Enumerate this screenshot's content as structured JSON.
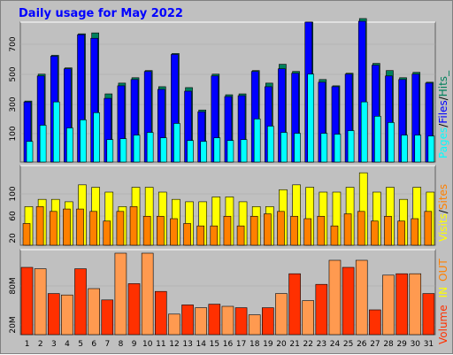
{
  "title": "Daily usage for May 2022",
  "colors": {
    "hits": "#00805c",
    "files": "#0000ff",
    "pages": "#00ffff",
    "visits": "#ffff00",
    "sites": "#ff8000",
    "kbytes": "#ff3000",
    "kbytes_light": "#ff9a50",
    "title": "#0000ff",
    "frame": "#c0c0c0",
    "weekend_day": "#00805c",
    "weekday": "#000000"
  },
  "legend": {
    "top": [
      "Pages",
      "/",
      "Files",
      "/",
      "Hits"
    ],
    "top_suffix": "_",
    "middle": [
      "Visits",
      "/",
      "Sites"
    ],
    "bottom": [
      "Volume",
      "IN",
      "OUT"
    ]
  },
  "chart_data": [
    {
      "type": "bar",
      "panel": "hits-files-pages",
      "categories": [
        "1",
        "2",
        "3",
        "4",
        "5",
        "6",
        "7",
        "8",
        "9",
        "10",
        "11",
        "12",
        "13",
        "14",
        "15",
        "16",
        "17",
        "18",
        "19",
        "20",
        "21",
        "22",
        "23",
        "24",
        "25",
        "26",
        "27",
        "28",
        "29",
        "30",
        "31"
      ],
      "y_ticks": [
        "100",
        "300",
        "500",
        "700"
      ],
      "ylim": [
        0,
        780
      ],
      "series": [
        {
          "name": "Hits",
          "values": [
            340,
            490,
            595,
            525,
            715,
            720,
            380,
            440,
            470,
            510,
            420,
            605,
            415,
            290,
            490,
            375,
            380,
            510,
            440,
            545,
            505,
            780,
            460,
            425,
            495,
            800,
            550,
            510,
            470,
            500,
            445
          ]
        },
        {
          "name": "Files",
          "values": [
            335,
            480,
            590,
            520,
            710,
            690,
            355,
            425,
            460,
            505,
            405,
            600,
            395,
            280,
            480,
            365,
            370,
            505,
            420,
            520,
            495,
            780,
            445,
            420,
            490,
            785,
            540,
            480,
            460,
            490,
            440
          ]
        },
        {
          "name": "Pages",
          "values": [
            115,
            205,
            335,
            190,
            235,
            275,
            125,
            130,
            150,
            165,
            135,
            215,
            120,
            115,
            135,
            120,
            125,
            240,
            200,
            165,
            160,
            490,
            160,
            155,
            175,
            335,
            255,
            220,
            150,
            150,
            145
          ]
        }
      ]
    },
    {
      "type": "bar",
      "panel": "visits-sites",
      "categories": [
        "1",
        "2",
        "3",
        "4",
        "5",
        "6",
        "7",
        "8",
        "9",
        "10",
        "11",
        "12",
        "13",
        "14",
        "15",
        "16",
        "17",
        "18",
        "19",
        "20",
        "21",
        "22",
        "23",
        "24",
        "25",
        "26",
        "27",
        "28",
        "29",
        "30",
        "31"
      ],
      "y_ticks": [
        "20",
        "60",
        "100"
      ],
      "ylim": [
        0,
        165
      ],
      "series": [
        {
          "name": "Visits",
          "values": [
            80,
            95,
            95,
            90,
            125,
            120,
            110,
            80,
            120,
            120,
            110,
            95,
            90,
            90,
            100,
            100,
            90,
            80,
            80,
            115,
            125,
            120,
            110,
            110,
            120,
            150,
            110,
            120,
            95,
            120,
            110
          ]
        },
        {
          "name": "Sites",
          "values": [
            45,
            80,
            70,
            75,
            75,
            70,
            50,
            70,
            80,
            60,
            60,
            55,
            45,
            40,
            40,
            60,
            40,
            60,
            65,
            70,
            60,
            55,
            60,
            40,
            65,
            70,
            50,
            60,
            50,
            55,
            70
          ]
        }
      ]
    },
    {
      "type": "bar",
      "panel": "volume",
      "categories": [
        "1",
        "2",
        "3",
        "4",
        "5",
        "6",
        "7",
        "8",
        "9",
        "10",
        "11",
        "12",
        "13",
        "14",
        "15",
        "16",
        "17",
        "18",
        "19",
        "20",
        "21",
        "22",
        "23",
        "24",
        "25",
        "26",
        "27",
        "28",
        "29",
        "30",
        "31"
      ],
      "y_ticks": [
        "20M",
        "80M"
      ],
      "ylim": [
        0,
        120
      ],
      "series": [
        {
          "name": "Volume",
          "values": [
            95,
            93,
            58,
            56,
            93,
            65,
            49,
            115,
            72,
            115,
            61,
            29,
            42,
            38,
            43,
            40,
            38,
            28,
            38,
            58,
            86,
            48,
            71,
            105,
            95,
            105,
            35,
            84,
            86,
            86,
            58
          ]
        }
      ]
    }
  ]
}
